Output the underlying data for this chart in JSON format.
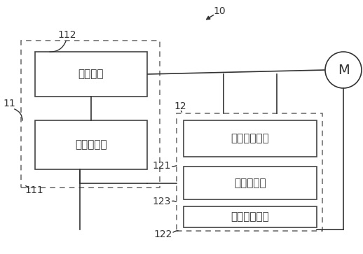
{
  "bg_color": "#ffffff",
  "fig_label": "10",
  "block11_label": "11",
  "block11_sublabel": "111",
  "block112_label": "112",
  "box_inverter": "逆变电路",
  "box_main_ctrl": "主控制电路",
  "block12_label": "12",
  "block121_label": "121",
  "block122_label": "122",
  "block123_label": "123",
  "box_current": "电流处理电路",
  "box_slave_ctrl": "从控制电路",
  "box_position": "位置检测电路",
  "motor_label": "M",
  "font_size_box": 11,
  "font_size_label": 10
}
